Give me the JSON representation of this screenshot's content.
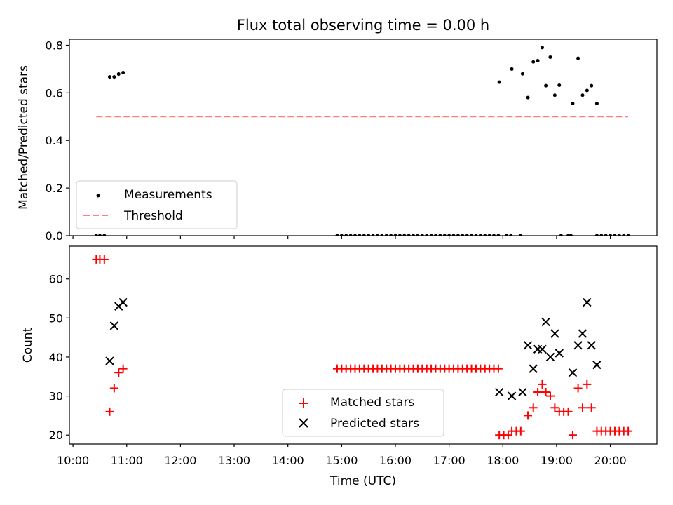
{
  "title": "Flux total observing time = 0.00 h",
  "chart_data": [
    {
      "type": "scatter",
      "panel": "top",
      "title": "Flux total observing time = 0.00 h",
      "xlabel": "",
      "ylabel": "Matched/Predicted stars",
      "xlim": [
        "09:56",
        "20:52"
      ],
      "ylim": [
        0,
        0.825
      ],
      "yticks": [
        "0.0",
        "0.2",
        "0.4",
        "0.6",
        "0.8"
      ],
      "legend_position": "lower-left",
      "series": [
        {
          "name": "Measurements",
          "color": "#000000",
          "marker": "dot",
          "points": [
            [
              "10:26",
              0.0
            ],
            [
              "10:30",
              0.0
            ],
            [
              "10:35",
              0.0
            ],
            [
              "10:41",
              0.667
            ],
            [
              "10:46",
              0.667
            ],
            [
              "10:51",
              0.679
            ],
            [
              "10:56",
              0.685
            ],
            [
              "14:55",
              0.0
            ],
            [
              "15:00",
              0.0
            ],
            [
              "15:05",
              0.0
            ],
            [
              "15:10",
              0.0
            ],
            [
              "15:15",
              0.0
            ],
            [
              "15:20",
              0.0
            ],
            [
              "15:25",
              0.0
            ],
            [
              "15:30",
              0.0
            ],
            [
              "15:35",
              0.0
            ],
            [
              "15:40",
              0.0
            ],
            [
              "15:45",
              0.0
            ],
            [
              "15:50",
              0.0
            ],
            [
              "15:55",
              0.0
            ],
            [
              "16:00",
              0.0
            ],
            [
              "16:05",
              0.0
            ],
            [
              "16:10",
              0.0
            ],
            [
              "16:15",
              0.0
            ],
            [
              "16:20",
              0.0
            ],
            [
              "16:25",
              0.0
            ],
            [
              "16:30",
              0.0
            ],
            [
              "16:35",
              0.0
            ],
            [
              "16:40",
              0.0
            ],
            [
              "16:45",
              0.0
            ],
            [
              "16:50",
              0.0
            ],
            [
              "16:55",
              0.0
            ],
            [
              "17:00",
              0.0
            ],
            [
              "17:05",
              0.0
            ],
            [
              "17:10",
              0.0
            ],
            [
              "17:15",
              0.0
            ],
            [
              "17:20",
              0.0
            ],
            [
              "17:25",
              0.0
            ],
            [
              "17:30",
              0.0
            ],
            [
              "17:35",
              0.0
            ],
            [
              "17:40",
              0.0
            ],
            [
              "17:45",
              0.0
            ],
            [
              "17:50",
              0.0
            ],
            [
              "17:55",
              0.0
            ],
            [
              "17:56",
              0.645
            ],
            [
              "18:04",
              0.0
            ],
            [
              "18:09",
              0.0
            ],
            [
              "18:10",
              0.7
            ],
            [
              "18:20",
              0.0
            ],
            [
              "18:22",
              0.68
            ],
            [
              "18:28",
              0.58
            ],
            [
              "18:34",
              0.73
            ],
            [
              "18:39",
              0.735
            ],
            [
              "18:44",
              0.79
            ],
            [
              "18:48",
              0.63
            ],
            [
              "18:53",
              0.75
            ],
            [
              "18:58",
              0.59
            ],
            [
              "19:03",
              0.632
            ],
            [
              "19:05",
              0.0
            ],
            [
              "19:13",
              0.0
            ],
            [
              "19:16",
              0.0
            ],
            [
              "19:18",
              0.555
            ],
            [
              "19:24",
              0.745
            ],
            [
              "19:29",
              0.59
            ],
            [
              "19:34",
              0.61
            ],
            [
              "19:39",
              0.63
            ],
            [
              "19:45",
              0.555
            ],
            [
              "19:45",
              0.0
            ],
            [
              "19:50",
              0.0
            ],
            [
              "19:55",
              0.0
            ],
            [
              "20:00",
              0.0
            ],
            [
              "20:05",
              0.0
            ],
            [
              "20:10",
              0.0
            ],
            [
              "20:15",
              0.0
            ],
            [
              "20:20",
              0.0
            ]
          ]
        },
        {
          "name": "Threshold",
          "color": "#ff7f7f",
          "style": "dashed",
          "points": [
            [
              "10:26",
              0.5
            ],
            [
              "20:20",
              0.5
            ]
          ]
        }
      ]
    },
    {
      "type": "scatter",
      "panel": "bottom",
      "xlabel": "Time (UTC)",
      "ylabel": "Count",
      "xlim": [
        "09:56",
        "20:52"
      ],
      "ylim": [
        17.7,
        68.4
      ],
      "yticks": [
        "20",
        "30",
        "40",
        "50",
        "60"
      ],
      "xticks": [
        "10:00",
        "11:00",
        "12:00",
        "13:00",
        "14:00",
        "15:00",
        "16:00",
        "17:00",
        "18:00",
        "19:00",
        "20:00"
      ],
      "legend_position": "lower-center",
      "series": [
        {
          "name": "Matched stars",
          "color": "#ff0000",
          "marker": "plus",
          "points": [
            [
              "10:26",
              65
            ],
            [
              "10:30",
              65
            ],
            [
              "10:35",
              65
            ],
            [
              "10:41",
              26
            ],
            [
              "10:46",
              32
            ],
            [
              "10:51",
              36
            ],
            [
              "10:56",
              37
            ],
            [
              "14:55",
              37
            ],
            [
              "15:00",
              37
            ],
            [
              "15:05",
              37
            ],
            [
              "15:10",
              37
            ],
            [
              "15:15",
              37
            ],
            [
              "15:20",
              37
            ],
            [
              "15:25",
              37
            ],
            [
              "15:30",
              37
            ],
            [
              "15:35",
              37
            ],
            [
              "15:40",
              37
            ],
            [
              "15:45",
              37
            ],
            [
              "15:50",
              37
            ],
            [
              "15:55",
              37
            ],
            [
              "16:00",
              37
            ],
            [
              "16:05",
              37
            ],
            [
              "16:10",
              37
            ],
            [
              "16:15",
              37
            ],
            [
              "16:20",
              37
            ],
            [
              "16:25",
              37
            ],
            [
              "16:30",
              37
            ],
            [
              "16:35",
              37
            ],
            [
              "16:40",
              37
            ],
            [
              "16:45",
              37
            ],
            [
              "16:50",
              37
            ],
            [
              "16:55",
              37
            ],
            [
              "17:00",
              37
            ],
            [
              "17:05",
              37
            ],
            [
              "17:10",
              37
            ],
            [
              "17:15",
              37
            ],
            [
              "17:20",
              37
            ],
            [
              "17:25",
              37
            ],
            [
              "17:30",
              37
            ],
            [
              "17:35",
              37
            ],
            [
              "17:40",
              37
            ],
            [
              "17:45",
              37
            ],
            [
              "17:50",
              37
            ],
            [
              "17:55",
              37
            ],
            [
              "17:56",
              20
            ],
            [
              "18:01",
              20
            ],
            [
              "18:06",
              20
            ],
            [
              "18:10",
              21
            ],
            [
              "18:15",
              21
            ],
            [
              "18:20",
              21
            ],
            [
              "18:28",
              25
            ],
            [
              "18:34",
              27
            ],
            [
              "18:39",
              31
            ],
            [
              "18:44",
              33
            ],
            [
              "18:48",
              31
            ],
            [
              "18:53",
              30
            ],
            [
              "18:58",
              27
            ],
            [
              "19:03",
              26
            ],
            [
              "19:08",
              26
            ],
            [
              "19:13",
              26
            ],
            [
              "19:18",
              20
            ],
            [
              "19:24",
              32
            ],
            [
              "19:29",
              27
            ],
            [
              "19:34",
              33
            ],
            [
              "19:39",
              27
            ],
            [
              "19:45",
              21
            ],
            [
              "19:50",
              21
            ],
            [
              "19:55",
              21
            ],
            [
              "20:00",
              21
            ],
            [
              "20:05",
              21
            ],
            [
              "20:10",
              21
            ],
            [
              "20:15",
              21
            ],
            [
              "20:20",
              21
            ]
          ]
        },
        {
          "name": "Predicted stars",
          "color": "#000000",
          "marker": "x",
          "points": [
            [
              "10:41",
              39
            ],
            [
              "10:46",
              48
            ],
            [
              "10:51",
              53
            ],
            [
              "10:56",
              54
            ],
            [
              "17:56",
              31
            ],
            [
              "18:10",
              30
            ],
            [
              "18:22",
              31
            ],
            [
              "18:28",
              43
            ],
            [
              "18:34",
              37
            ],
            [
              "18:39",
              42
            ],
            [
              "18:44",
              42
            ],
            [
              "18:48",
              49
            ],
            [
              "18:53",
              40
            ],
            [
              "18:58",
              46
            ],
            [
              "19:03",
              41
            ],
            [
              "19:18",
              36
            ],
            [
              "19:24",
              43
            ],
            [
              "19:29",
              46
            ],
            [
              "19:34",
              54
            ],
            [
              "19:39",
              43
            ],
            [
              "19:45",
              38
            ]
          ]
        }
      ]
    }
  ]
}
